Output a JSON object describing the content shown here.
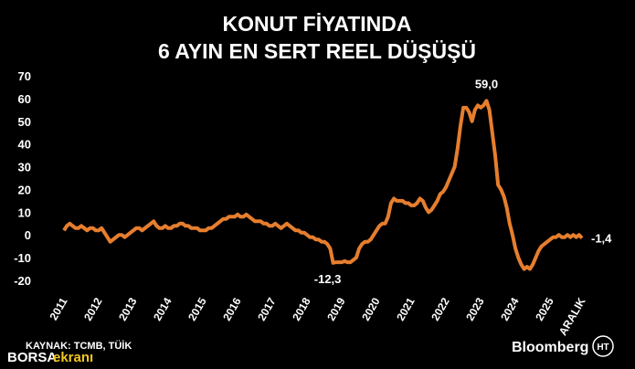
{
  "chart_data": {
    "type": "line",
    "title": "KONUT FİYATINDA",
    "subtitle": "6 AYIN EN SERT REEL DÜŞÜŞÜ",
    "source": "KAYNAK: TCMB, TÜİK",
    "logo": "Bloomberg",
    "logo_badge": "HT",
    "watermark": [
      "BORSA",
      "ekranı"
    ],
    "categories": [
      "2011",
      null,
      null,
      null,
      null,
      null,
      null,
      null,
      null,
      null,
      null,
      null,
      "2012",
      null,
      null,
      null,
      null,
      null,
      null,
      null,
      null,
      null,
      null,
      null,
      "2013",
      null,
      null,
      null,
      null,
      null,
      null,
      null,
      null,
      null,
      null,
      null,
      "2014",
      null,
      null,
      null,
      null,
      null,
      null,
      null,
      null,
      null,
      null,
      null,
      "2015",
      null,
      null,
      null,
      null,
      null,
      null,
      null,
      null,
      null,
      null,
      null,
      "2016",
      null,
      null,
      null,
      null,
      null,
      null,
      null,
      null,
      null,
      null,
      null,
      "2017",
      null,
      null,
      null,
      null,
      null,
      null,
      null,
      null,
      null,
      null,
      null,
      "2018",
      null,
      null,
      null,
      null,
      null,
      null,
      null,
      null,
      null,
      null,
      null,
      "2019",
      null,
      null,
      null,
      null,
      null,
      null,
      null,
      null,
      null,
      null,
      null,
      "2020",
      null,
      null,
      null,
      null,
      null,
      null,
      null,
      null,
      null,
      null,
      null,
      "2021",
      null,
      null,
      null,
      null,
      null,
      null,
      null,
      null,
      null,
      null,
      null,
      "2022",
      null,
      null,
      null,
      null,
      null,
      null,
      null,
      null,
      null,
      null,
      null,
      "2023",
      null,
      null,
      null,
      null,
      null,
      null,
      null,
      null,
      null,
      null,
      null,
      "2024",
      null,
      null,
      null,
      null,
      null,
      null,
      null,
      null,
      null,
      null,
      null,
      "2025",
      null,
      null,
      null,
      null,
      null,
      null,
      null,
      null,
      null,
      null,
      "ARALIK"
    ],
    "series": [
      {
        "color": "#e67e2e",
        "values": [
          2,
          4,
          5,
          4,
          3,
          3,
          4,
          3,
          2,
          3,
          3,
          2,
          2,
          3,
          1,
          -1,
          -3,
          -2,
          -1,
          0,
          0,
          -1,
          0,
          1,
          2,
          3,
          3,
          2,
          3,
          4,
          5,
          6,
          4,
          3,
          3,
          4,
          3,
          3,
          4,
          4,
          5,
          5,
          4,
          4,
          3,
          3,
          3,
          2,
          2,
          2,
          3,
          3,
          4,
          5,
          6,
          7,
          7,
          8,
          8,
          8,
          9,
          8,
          8,
          9,
          8,
          7,
          6,
          6,
          6,
          5,
          5,
          4,
          4,
          5,
          4,
          3,
          4,
          5,
          4,
          3,
          2,
          2,
          1,
          1,
          0,
          -1,
          -1,
          -2,
          -2,
          -3,
          -3,
          -4,
          -6,
          -12.3,
          -12,
          -12,
          -12,
          -11.5,
          -12,
          -12,
          -11,
          -10,
          -6,
          -4,
          -3,
          -3,
          -2,
          0,
          2,
          4,
          5,
          5,
          8,
          14,
          16,
          15,
          15,
          15,
          14,
          14,
          13,
          13,
          14,
          16,
          15,
          12,
          10,
          11,
          13,
          15,
          18,
          19,
          21,
          24,
          27,
          30,
          38,
          48,
          56,
          56,
          54,
          50,
          55,
          57,
          56,
          57,
          59.0,
          55,
          45,
          35,
          22,
          20,
          17,
          12,
          5,
          0,
          -6,
          -10,
          -13,
          -15,
          -14,
          -15,
          -13,
          -10,
          -7,
          -5,
          -4,
          -3,
          -2,
          -1,
          -1,
          0,
          -1,
          -1,
          0,
          -1,
          0,
          -1,
          0,
          -1.4
        ],
        "value_labels": [
          null,
          null,
          null,
          null,
          null,
          null,
          null,
          null,
          null,
          null,
          null,
          null,
          null,
          null,
          null,
          null,
          null,
          null,
          null,
          null,
          null,
          null,
          null,
          null,
          null,
          null,
          null,
          null,
          null,
          null,
          null,
          null,
          null,
          null,
          null,
          null,
          null,
          null,
          null,
          null,
          null,
          null,
          null,
          null,
          null,
          null,
          null,
          null,
          null,
          null,
          null,
          null,
          null,
          null,
          null,
          null,
          null,
          null,
          null,
          null,
          null,
          null,
          null,
          null,
          null,
          null,
          null,
          null,
          null,
          null,
          null,
          null,
          null,
          null,
          null,
          null,
          null,
          null,
          null,
          null,
          null,
          null,
          null,
          null,
          null,
          null,
          null,
          null,
          null,
          null,
          null,
          null,
          null,
          "-12,3",
          null,
          null,
          null,
          null,
          null,
          null,
          null,
          null,
          null,
          null,
          null,
          null,
          null,
          null,
          null,
          null,
          null,
          null,
          null,
          null,
          null,
          null,
          null,
          null,
          null,
          null,
          null,
          null,
          null,
          null,
          null,
          null,
          null,
          null,
          null,
          null,
          null,
          null,
          null,
          null,
          null,
          null,
          null,
          null,
          null,
          null,
          null,
          null,
          null,
          null,
          null,
          null,
          "59,0",
          null,
          null,
          null,
          null,
          null,
          null,
          null,
          null,
          null,
          null,
          null,
          null,
          null,
          null,
          null,
          null,
          null,
          null,
          null,
          null,
          null,
          null,
          null,
          null,
          null,
          null,
          null,
          null,
          null,
          null,
          null,
          null,
          "-1,4"
        ]
      }
    ],
    "ylim": [
      -20,
      70
    ],
    "yticks": [
      -20,
      -10,
      0,
      10,
      20,
      30,
      40,
      50,
      60,
      70
    ],
    "grid": false
  }
}
